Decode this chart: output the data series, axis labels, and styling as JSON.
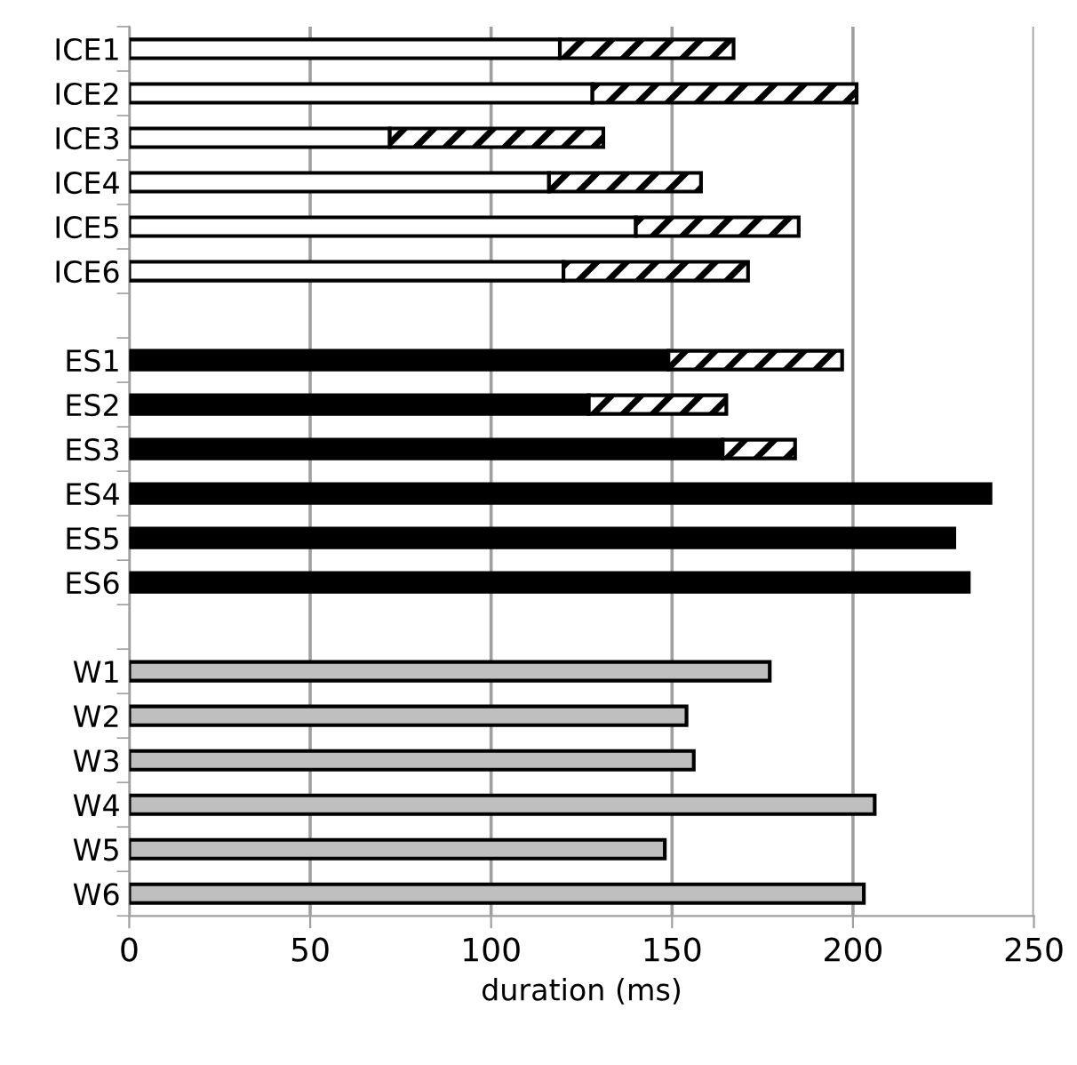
{
  "chart_data": {
    "type": "bar",
    "orientation": "horizontal",
    "stacked": true,
    "categories": [
      "ICE1",
      "ICE2",
      "ICE3",
      "ICE4",
      "ICE5",
      "ICE6",
      null,
      "ES1",
      "ES2",
      "ES3",
      "ES4",
      "ES5",
      "ES6",
      null,
      "W1",
      "W2",
      "W3",
      "W4",
      "W5",
      "W6"
    ],
    "series": [
      {
        "colors": [
          "#ffffff",
          "#ffffff",
          "#ffffff",
          "#ffffff",
          "#ffffff",
          "#ffffff",
          null,
          "#000000",
          "#000000",
          "#000000",
          "#000000",
          "#000000",
          "#000000",
          null,
          "#bfbfbf",
          "#bfbfbf",
          "#bfbfbf",
          "#bfbfbf",
          "#bfbfbf",
          "#bfbfbf"
        ],
        "values": [
          119,
          128,
          72,
          116,
          140,
          120,
          null,
          149,
          127,
          164,
          238,
          228,
          232,
          null,
          177,
          154,
          156,
          206,
          148,
          203
        ]
      },
      {
        "color": "#000000",
        "values": [
          48,
          73,
          59,
          42,
          45,
          51,
          null,
          48,
          38,
          20,
          null,
          null,
          null,
          null,
          null,
          null,
          null,
          null,
          null,
          null
        ]
      }
    ],
    "xlabel": "duration (ms)",
    "xlim": [
      0,
      250
    ],
    "xticks": [
      0,
      50,
      100,
      150,
      200,
      250
    ],
    "grid": "x",
    "legend": false
  }
}
